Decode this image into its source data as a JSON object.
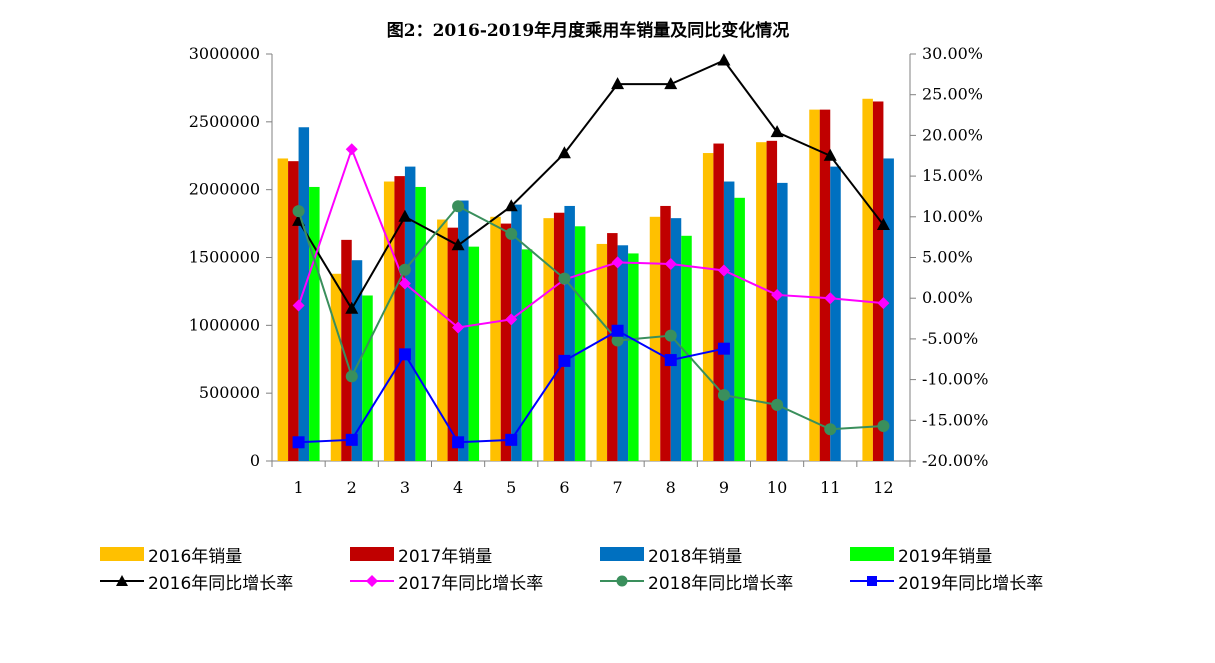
{
  "chart_data": {
    "type": "bar+line",
    "title": "图2：2016-2019年月度乘用车销量及同比变化情况",
    "categories": [
      "1",
      "2",
      "3",
      "4",
      "5",
      "6",
      "7",
      "8",
      "9",
      "10",
      "11",
      "12"
    ],
    "left_axis": {
      "min": 0,
      "max": 3000000,
      "step": 500000,
      "ticks": [
        "0",
        "500000",
        "1000000",
        "1500000",
        "2000000",
        "2500000",
        "3000000"
      ]
    },
    "right_axis": {
      "min": -20,
      "max": 30,
      "step": 5,
      "ticks": [
        "-20.00%",
        "-15.00%",
        "-10.00%",
        "-5.00%",
        "0.00%",
        "5.00%",
        "10.00%",
        "15.00%",
        "20.00%",
        "25.00%",
        "30.00%"
      ]
    },
    "bar_series": [
      {
        "name": "2016年销量",
        "color": "#FFC000",
        "values": [
          2230000,
          1380000,
          2060000,
          1780000,
          1800000,
          1790000,
          1600000,
          1800000,
          2270000,
          2350000,
          2590000,
          2670000
        ]
      },
      {
        "name": "2017年销量",
        "color": "#C00000",
        "values": [
          2210000,
          1630000,
          2100000,
          1720000,
          1750000,
          1830000,
          1680000,
          1880000,
          2340000,
          2360000,
          2590000,
          2650000
        ]
      },
      {
        "name": "2018年销量",
        "color": "#0070C0",
        "values": [
          2460000,
          1480000,
          2170000,
          1920000,
          1890000,
          1880000,
          1590000,
          1790000,
          2060000,
          2050000,
          2170000,
          2230000
        ]
      },
      {
        "name": "2019年销量",
        "color": "#00FF00",
        "values": [
          2020000,
          1220000,
          2020000,
          1580000,
          1560000,
          1730000,
          1530000,
          1660000,
          1940000,
          null,
          null,
          null
        ]
      }
    ],
    "line_series": [
      {
        "name": "2016年同比增长率",
        "color": "#000000",
        "marker": "triangle",
        "values": [
          9.5,
          -1.3,
          10.0,
          6.5,
          11.3,
          17.8,
          26.3,
          26.3,
          29.2,
          20.4,
          17.5,
          9.0
        ]
      },
      {
        "name": "2017年同比增长率",
        "color": "#FF00FF",
        "marker": "diamond",
        "values": [
          -0.9,
          18.3,
          1.8,
          -3.6,
          -2.6,
          2.3,
          4.4,
          4.2,
          3.4,
          0.4,
          0.0,
          -0.6
        ]
      },
      {
        "name": "2018年同比增长率",
        "color": "#3A8F5C",
        "marker": "circle",
        "values": [
          10.7,
          -9.6,
          3.5,
          11.3,
          7.9,
          2.4,
          -5.2,
          -4.6,
          -11.9,
          -13.1,
          -16.1,
          -15.7
        ]
      },
      {
        "name": "2019年同比增长率",
        "color": "#0000FF",
        "marker": "square",
        "values": [
          -17.7,
          -17.4,
          -6.9,
          -17.7,
          -17.4,
          -7.7,
          -4.0,
          -7.6,
          -6.2,
          null,
          null,
          null
        ]
      }
    ]
  }
}
